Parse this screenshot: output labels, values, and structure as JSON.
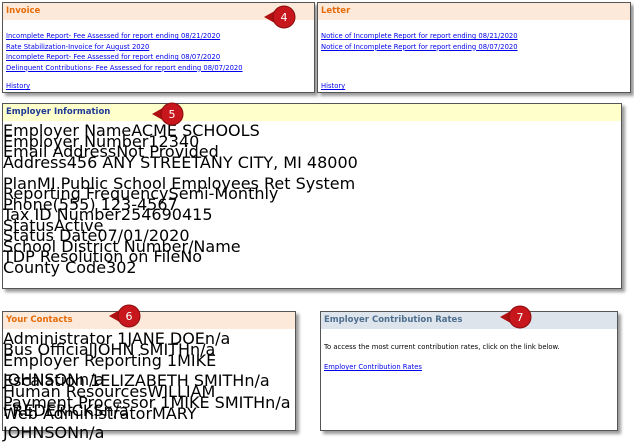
{
  "invoice": {
    "title": "Invoice",
    "links": [
      "Incomplete Report- Fee Assessed for report ending 08/21/2020",
      "Rate Stabilization-Invoice for August 2020",
      "Incomplete Report- Fee Assessed for report ending 08/07/2020",
      "Delinquent Contributions- Fee Assessed for report ending 08/07/2020"
    ],
    "history": "History"
  },
  "letter": {
    "title": "Letter",
    "links": [
      "Notice of Incomplete Report for report ending 08/21/2020",
      "Notice of Incomplete Report for report ending 08/07/2020"
    ],
    "history": "History"
  },
  "employer_information": {
    "title": "Employer Information",
    "rows": [
      {
        "label": "Employer Name",
        "values": [
          "ACME SCHOOLS"
        ]
      },
      {
        "label": "Employer Number",
        "values": [
          "12340"
        ]
      },
      {
        "label": "Email Address",
        "values": [
          "Not Provided"
        ]
      },
      {
        "label": "Address",
        "values": [
          "456 ANY STREET",
          "ANY CITY, MI 48000"
        ]
      },
      {
        "label": "Plan",
        "values": [
          "MI Public School Employees Ret System"
        ]
      },
      {
        "label": "Reporting Frequency",
        "values": [
          "Semi-Monthly"
        ]
      },
      {
        "label": "Phone",
        "values": [
          "(555) 123-4567"
        ]
      },
      {
        "label": "Tax ID Number",
        "values": [
          "254690415"
        ]
      },
      {
        "label": "Status",
        "values": [
          "Active"
        ]
      },
      {
        "label": "Status Date",
        "values": [
          "07/01/2020"
        ]
      },
      {
        "label": "School District Number/Name",
        "values": []
      },
      {
        "label": "TDP Resolution on File",
        "values": [
          "No"
        ]
      },
      {
        "label": "County Code",
        "values": [
          "302"
        ]
      }
    ]
  },
  "contacts": {
    "title": "Your Contacts",
    "rows": [
      [
        "Administrator 1",
        "JANE DOE",
        "n/a"
      ],
      [
        "Bus Official",
        "JOHN SMITH",
        "n/a"
      ],
      [
        "Employer Reporting 1",
        "MIKE JOHNSON",
        "n/a"
      ],
      [
        "Escalation 1",
        "ELIZABETH SMITH",
        "n/a"
      ],
      [
        "Human Resources",
        "WILLIAM FREDERICKS",
        "n/a"
      ],
      [
        "Payment Processor 1",
        "MIKE SMITH",
        "n/a"
      ],
      [
        "Web Administrator",
        "MARY JOHNSON",
        "n/a"
      ]
    ]
  },
  "contribution_rates": {
    "title": "Employer Contribution Rates",
    "text": "To access the most current contribution rates, click on the link below.",
    "link": "Employer Contribution Rates"
  },
  "badges": [
    "4",
    "5",
    "6",
    "7"
  ]
}
